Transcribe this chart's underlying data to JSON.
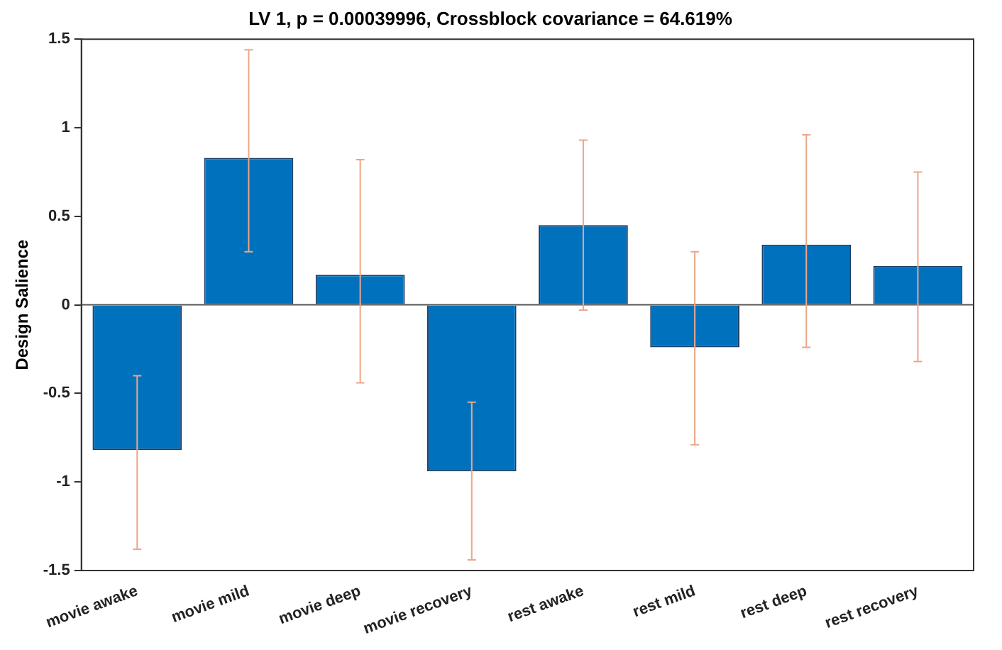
{
  "chart_data": {
    "type": "bar",
    "title": "LV 1, p = 0.00039996, Crossblock covariance = 64.619%",
    "ylabel": "Design Salience",
    "categories": [
      "movie awake",
      "movie mild",
      "movie deep",
      "movie recovery",
      "rest awake",
      "rest mild",
      "rest deep",
      "rest recovery"
    ],
    "values": [
      -0.82,
      0.83,
      0.17,
      -0.94,
      0.45,
      -0.24,
      0.34,
      0.22
    ],
    "errors": [
      [
        -1.38,
        -0.4
      ],
      [
        0.3,
        1.44
      ],
      [
        -0.44,
        0.82
      ],
      [
        -1.44,
        -0.55
      ],
      [
        -0.03,
        0.93
      ],
      [
        -0.79,
        0.3
      ],
      [
        -0.24,
        0.96
      ],
      [
        -0.32,
        0.75
      ]
    ],
    "color": "#0072bd",
    "ylim": [
      -1.5,
      1.5
    ],
    "yticks": [
      -1.5,
      -1,
      -0.5,
      0,
      0.5,
      1,
      1.5
    ],
    "grid": false,
    "legend": false,
    "ref_lines": [
      {
        "axis": "y",
        "value": 0,
        "color": "#555555"
      }
    ]
  }
}
